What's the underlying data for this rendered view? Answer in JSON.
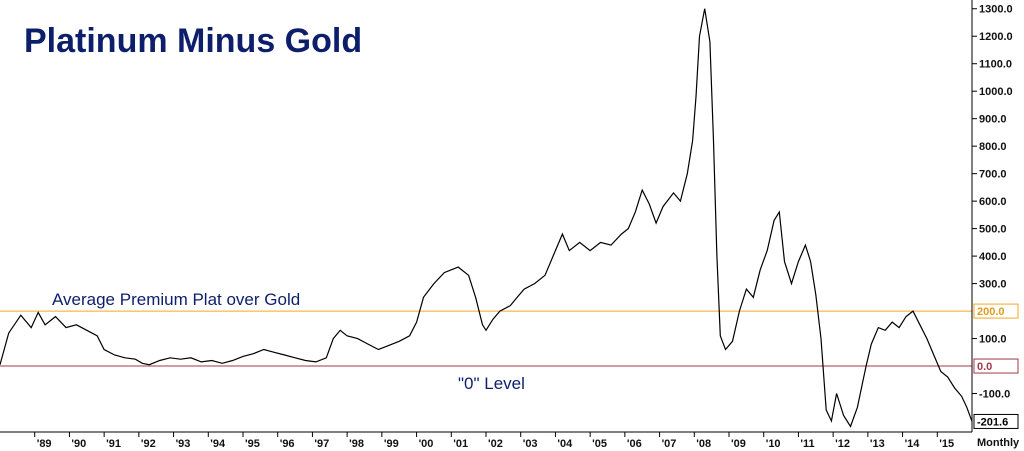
{
  "chart_data": {
    "type": "line",
    "title": "Platinum Minus Gold",
    "period_label": "Monthly",
    "x_unit": "year",
    "xlim": [
      1988.0,
      2016.0
    ],
    "ylim": [
      -240,
      1310
    ],
    "y_ticks": [
      {
        "value": 1300,
        "label": "1300.0"
      },
      {
        "value": 1200,
        "label": "1200.0"
      },
      {
        "value": 1100,
        "label": "1100.0"
      },
      {
        "value": 1000,
        "label": "1000.0"
      },
      {
        "value": 900,
        "label": "900.0"
      },
      {
        "value": 800,
        "label": "800.0"
      },
      {
        "value": 700,
        "label": "700.0"
      },
      {
        "value": 600,
        "label": "600.0"
      },
      {
        "value": 500,
        "label": "500.0"
      },
      {
        "value": 400,
        "label": "400.0"
      },
      {
        "value": 300,
        "label": "300.0"
      },
      {
        "value": 100,
        "label": "100.0"
      },
      {
        "value": -100,
        "label": "-100.0"
      }
    ],
    "x_ticks": [
      {
        "value": 1989,
        "label": "'89"
      },
      {
        "value": 1990,
        "label": "'90"
      },
      {
        "value": 1991,
        "label": "'91"
      },
      {
        "value": 1992,
        "label": "'92"
      },
      {
        "value": 1993,
        "label": "'93"
      },
      {
        "value": 1994,
        "label": "'94"
      },
      {
        "value": 1995,
        "label": "'95"
      },
      {
        "value": 1996,
        "label": "'96"
      },
      {
        "value": 1997,
        "label": "'97"
      },
      {
        "value": 1998,
        "label": "'98"
      },
      {
        "value": 1999,
        "label": "'99"
      },
      {
        "value": 2000,
        "label": "'00"
      },
      {
        "value": 2001,
        "label": "'01"
      },
      {
        "value": 2002,
        "label": "'02"
      },
      {
        "value": 2003,
        "label": "'03"
      },
      {
        "value": 2004,
        "label": "'04"
      },
      {
        "value": 2005,
        "label": "'05"
      },
      {
        "value": 2006,
        "label": "'06"
      },
      {
        "value": 2007,
        "label": "'07"
      },
      {
        "value": 2008,
        "label": "'08"
      },
      {
        "value": 2009,
        "label": "'09"
      },
      {
        "value": 2010,
        "label": "'10"
      },
      {
        "value": 2011,
        "label": "'11"
      },
      {
        "value": 2012,
        "label": "'12"
      },
      {
        "value": 2013,
        "label": "'13"
      },
      {
        "value": 2014,
        "label": "'14"
      },
      {
        "value": 2015,
        "label": "'15"
      }
    ],
    "reference_lines": [
      {
        "value": 200,
        "label": "200.0",
        "color": "#f5a623",
        "annotation": "Average Premium Plat over Gold"
      },
      {
        "value": 0,
        "label": "0.0",
        "color": "#a0394a",
        "annotation": "\"0\" Level"
      }
    ],
    "last_value": {
      "value": -201.6,
      "label": "-201.6"
    },
    "series": [
      {
        "line_color": "#000000",
        "points": [
          [
            1988.0,
            5
          ],
          [
            1988.25,
            120
          ],
          [
            1988.6,
            185
          ],
          [
            1988.9,
            140
          ],
          [
            1989.1,
            195
          ],
          [
            1989.3,
            150
          ],
          [
            1989.6,
            180
          ],
          [
            1989.9,
            140
          ],
          [
            1990.2,
            150
          ],
          [
            1990.5,
            130
          ],
          [
            1990.8,
            110
          ],
          [
            1991.0,
            60
          ],
          [
            1991.3,
            40
          ],
          [
            1991.6,
            30
          ],
          [
            1991.9,
            25
          ],
          [
            1992.1,
            10
          ],
          [
            1992.3,
            5
          ],
          [
            1992.6,
            20
          ],
          [
            1992.9,
            30
          ],
          [
            1993.2,
            25
          ],
          [
            1993.5,
            30
          ],
          [
            1993.8,
            15
          ],
          [
            1994.1,
            20
          ],
          [
            1994.4,
            10
          ],
          [
            1994.7,
            20
          ],
          [
            1995.0,
            35
          ],
          [
            1995.3,
            45
          ],
          [
            1995.6,
            60
          ],
          [
            1995.9,
            50
          ],
          [
            1996.2,
            40
          ],
          [
            1996.5,
            30
          ],
          [
            1996.8,
            20
          ],
          [
            1997.1,
            15
          ],
          [
            1997.4,
            30
          ],
          [
            1997.6,
            100
          ],
          [
            1997.8,
            130
          ],
          [
            1998.0,
            110
          ],
          [
            1998.3,
            100
          ],
          [
            1998.6,
            80
          ],
          [
            1998.9,
            60
          ],
          [
            1999.2,
            75
          ],
          [
            1999.5,
            90
          ],
          [
            1999.8,
            110
          ],
          [
            2000.0,
            160
          ],
          [
            2000.2,
            250
          ],
          [
            2000.5,
            300
          ],
          [
            2000.8,
            340
          ],
          [
            2001.0,
            350
          ],
          [
            2001.2,
            360
          ],
          [
            2001.5,
            330
          ],
          [
            2001.7,
            250
          ],
          [
            2001.9,
            150
          ],
          [
            2002.0,
            130
          ],
          [
            2002.2,
            170
          ],
          [
            2002.4,
            200
          ],
          [
            2002.7,
            220
          ],
          [
            2002.9,
            250
          ],
          [
            2003.1,
            280
          ],
          [
            2003.4,
            300
          ],
          [
            2003.7,
            330
          ],
          [
            2004.0,
            420
          ],
          [
            2004.2,
            480
          ],
          [
            2004.4,
            420
          ],
          [
            2004.7,
            450
          ],
          [
            2005.0,
            420
          ],
          [
            2005.3,
            450
          ],
          [
            2005.6,
            440
          ],
          [
            2005.9,
            480
          ],
          [
            2006.1,
            500
          ],
          [
            2006.3,
            560
          ],
          [
            2006.5,
            640
          ],
          [
            2006.7,
            590
          ],
          [
            2006.9,
            520
          ],
          [
            2007.1,
            580
          ],
          [
            2007.4,
            630
          ],
          [
            2007.6,
            600
          ],
          [
            2007.8,
            700
          ],
          [
            2007.95,
            820
          ],
          [
            2008.05,
            980
          ],
          [
            2008.15,
            1200
          ],
          [
            2008.3,
            1300
          ],
          [
            2008.45,
            1180
          ],
          [
            2008.55,
            830
          ],
          [
            2008.65,
            400
          ],
          [
            2008.75,
            110
          ],
          [
            2008.9,
            60
          ],
          [
            2009.1,
            90
          ],
          [
            2009.3,
            200
          ],
          [
            2009.5,
            280
          ],
          [
            2009.7,
            250
          ],
          [
            2009.9,
            350
          ],
          [
            2010.1,
            420
          ],
          [
            2010.3,
            530
          ],
          [
            2010.45,
            560
          ],
          [
            2010.6,
            380
          ],
          [
            2010.8,
            300
          ],
          [
            2011.0,
            380
          ],
          [
            2011.2,
            440
          ],
          [
            2011.35,
            380
          ],
          [
            2011.5,
            260
          ],
          [
            2011.65,
            100
          ],
          [
            2011.8,
            -160
          ],
          [
            2011.95,
            -200
          ],
          [
            2012.1,
            -100
          ],
          [
            2012.3,
            -180
          ],
          [
            2012.5,
            -220
          ],
          [
            2012.7,
            -150
          ],
          [
            2012.85,
            -60
          ],
          [
            2012.95,
            0
          ],
          [
            2013.1,
            80
          ],
          [
            2013.3,
            140
          ],
          [
            2013.5,
            130
          ],
          [
            2013.7,
            160
          ],
          [
            2013.9,
            140
          ],
          [
            2014.1,
            180
          ],
          [
            2014.3,
            200
          ],
          [
            2014.5,
            150
          ],
          [
            2014.7,
            100
          ],
          [
            2014.9,
            40
          ],
          [
            2015.1,
            -20
          ],
          [
            2015.3,
            -40
          ],
          [
            2015.5,
            -80
          ],
          [
            2015.7,
            -110
          ],
          [
            2015.85,
            -150
          ],
          [
            2016.0,
            -201.6
          ]
        ]
      }
    ]
  }
}
